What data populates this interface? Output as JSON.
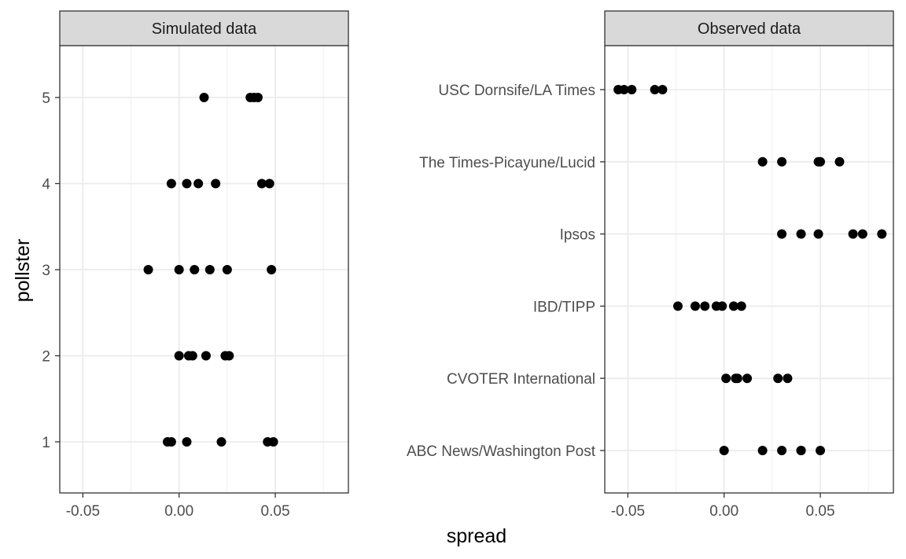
{
  "chart_data": {
    "type": "scatter",
    "xlabel": "spread",
    "ylabel": "pollster",
    "grid": true,
    "marker_color": "#000000",
    "grid_color": "#ebebeb",
    "strip_fill": "#d9d9d9",
    "panels": [
      {
        "title": "Simulated data",
        "xlim": [
          -0.062,
          0.088
        ],
        "xticks": [
          -0.05,
          0.0,
          0.05
        ],
        "xtick_labels": [
          "-0.05",
          "0.00",
          "0.05"
        ],
        "categories": [
          "1",
          "2",
          "3",
          "4",
          "5"
        ],
        "points": [
          {
            "category": "5",
            "x": 0.013
          },
          {
            "category": "5",
            "x": 0.037
          },
          {
            "category": "5",
            "x": 0.039
          },
          {
            "category": "5",
            "x": 0.041
          },
          {
            "category": "4",
            "x": -0.004
          },
          {
            "category": "4",
            "x": 0.004
          },
          {
            "category": "4",
            "x": 0.01
          },
          {
            "category": "4",
            "x": 0.019
          },
          {
            "category": "4",
            "x": 0.043
          },
          {
            "category": "4",
            "x": 0.047
          },
          {
            "category": "3",
            "x": -0.016
          },
          {
            "category": "3",
            "x": 0.0
          },
          {
            "category": "3",
            "x": 0.008
          },
          {
            "category": "3",
            "x": 0.016
          },
          {
            "category": "3",
            "x": 0.025
          },
          {
            "category": "3",
            "x": 0.048
          },
          {
            "category": "2",
            "x": 0.0
          },
          {
            "category": "2",
            "x": 0.005
          },
          {
            "category": "2",
            "x": 0.007
          },
          {
            "category": "2",
            "x": 0.014
          },
          {
            "category": "2",
            "x": 0.024
          },
          {
            "category": "2",
            "x": 0.026
          },
          {
            "category": "1",
            "x": -0.006
          },
          {
            "category": "1",
            "x": -0.004
          },
          {
            "category": "1",
            "x": 0.004
          },
          {
            "category": "1",
            "x": 0.022
          },
          {
            "category": "1",
            "x": 0.046
          },
          {
            "category": "1",
            "x": 0.049
          }
        ]
      },
      {
        "title": "Observed data",
        "xlim": [
          -0.062,
          0.088
        ],
        "xticks": [
          -0.05,
          0.0,
          0.05
        ],
        "xtick_labels": [
          "-0.05",
          "0.00",
          "0.05"
        ],
        "categories": [
          "ABC News/Washington Post",
          "CVOTER International",
          "IBD/TIPP",
          "Ipsos",
          "The Times-Picayune/Lucid",
          "USC Dornsife/LA Times"
        ],
        "points": [
          {
            "category": "USC Dornsife/LA Times",
            "x": -0.055
          },
          {
            "category": "USC Dornsife/LA Times",
            "x": -0.052
          },
          {
            "category": "USC Dornsife/LA Times",
            "x": -0.048
          },
          {
            "category": "USC Dornsife/LA Times",
            "x": -0.036
          },
          {
            "category": "USC Dornsife/LA Times",
            "x": -0.032
          },
          {
            "category": "The Times-Picayune/Lucid",
            "x": 0.02
          },
          {
            "category": "The Times-Picayune/Lucid",
            "x": 0.03
          },
          {
            "category": "The Times-Picayune/Lucid",
            "x": 0.049
          },
          {
            "category": "The Times-Picayune/Lucid",
            "x": 0.05
          },
          {
            "category": "The Times-Picayune/Lucid",
            "x": 0.06
          },
          {
            "category": "Ipsos",
            "x": 0.03
          },
          {
            "category": "Ipsos",
            "x": 0.04
          },
          {
            "category": "Ipsos",
            "x": 0.049
          },
          {
            "category": "Ipsos",
            "x": 0.067
          },
          {
            "category": "Ipsos",
            "x": 0.072
          },
          {
            "category": "Ipsos",
            "x": 0.082
          },
          {
            "category": "IBD/TIPP",
            "x": -0.024
          },
          {
            "category": "IBD/TIPP",
            "x": -0.015
          },
          {
            "category": "IBD/TIPP",
            "x": -0.01
          },
          {
            "category": "IBD/TIPP",
            "x": -0.004
          },
          {
            "category": "IBD/TIPP",
            "x": -0.001
          },
          {
            "category": "IBD/TIPP",
            "x": 0.005
          },
          {
            "category": "IBD/TIPP",
            "x": 0.009
          },
          {
            "category": "CVOTER International",
            "x": 0.001
          },
          {
            "category": "CVOTER International",
            "x": 0.006
          },
          {
            "category": "CVOTER International",
            "x": 0.007
          },
          {
            "category": "CVOTER International",
            "x": 0.012
          },
          {
            "category": "CVOTER International",
            "x": 0.028
          },
          {
            "category": "CVOTER International",
            "x": 0.033
          },
          {
            "category": "ABC News/Washington Post",
            "x": 0.0
          },
          {
            "category": "ABC News/Washington Post",
            "x": 0.02
          },
          {
            "category": "ABC News/Washington Post",
            "x": 0.03
          },
          {
            "category": "ABC News/Washington Post",
            "x": 0.04
          },
          {
            "category": "ABC News/Washington Post",
            "x": 0.04
          },
          {
            "category": "ABC News/Washington Post",
            "x": 0.05
          }
        ]
      }
    ]
  }
}
